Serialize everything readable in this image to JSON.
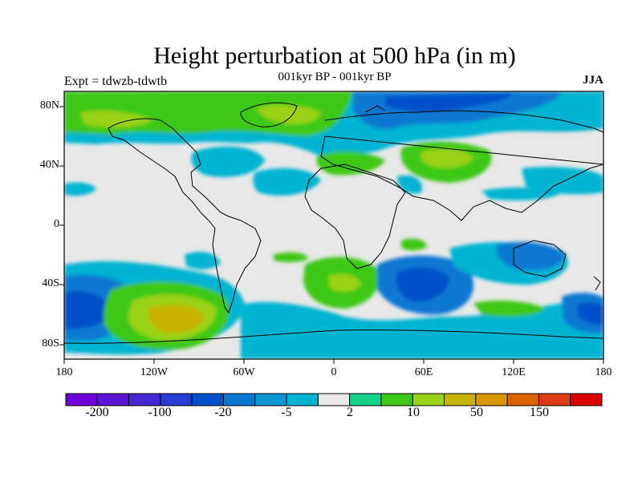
{
  "header": {
    "title": "Height perturbation at 500 hPa (in m)",
    "experiment": "Expt = tdwzb-tdwtb",
    "period": "001kyr BP - 001kyr BP",
    "season": "JJA"
  },
  "axes": {
    "lat_ticks": [
      "80N",
      "40N",
      "0",
      "40S",
      "80S"
    ],
    "lon_ticks": [
      "180",
      "120W",
      "60W",
      "0",
      "60E",
      "120E",
      "180"
    ]
  },
  "colorbar": {
    "colors": [
      "#6e00dc",
      "#5a14d2",
      "#4628d2",
      "#283cd2",
      "#0050c8",
      "#0a78d2",
      "#0a96d2",
      "#00b4d2",
      "#e8e8e8",
      "#14d28c",
      "#3cc814",
      "#9ad214",
      "#c8b400",
      "#dc9600",
      "#dc6400",
      "#dc3c14",
      "#dc0000"
    ],
    "labels": [
      "-200",
      "-100",
      "-20",
      "-5",
      "2",
      "10",
      "50",
      "150"
    ]
  }
}
